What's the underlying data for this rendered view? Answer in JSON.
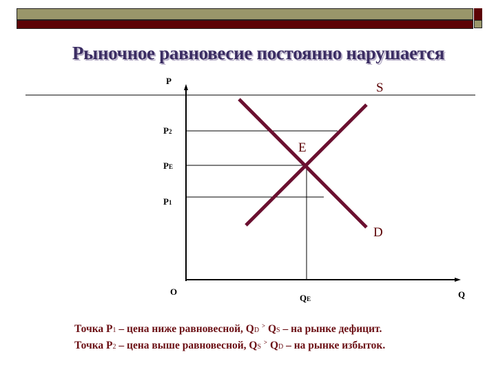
{
  "slide": {
    "title": "Рыночное равновесие постоянно нарушается",
    "colors": {
      "olive": "#99966a",
      "dark_red": "#5c0306",
      "title": "#3b2d63",
      "curve": "#6b1030"
    }
  },
  "diagram": {
    "axis_y_label": "P",
    "axis_x_label": "Q",
    "origin_label": "O",
    "price_labels": [
      {
        "main": "P",
        "sub": "2"
      },
      {
        "main": "P",
        "sub": "E"
      },
      {
        "main": "P",
        "sub": "1"
      }
    ],
    "qe_label": {
      "main": "Q",
      "sub": "E"
    },
    "supply_label": "S",
    "demand_label": "D",
    "equilibrium_label": "E"
  },
  "notes": [
    {
      "a": "Точка P",
      "a_sub": "1",
      "b": " – цена ниже равновесной,  Q",
      "b_sub": "D",
      "sym": "&gt;",
      "c": " Q",
      "c_sub": "S",
      "d": " – на рынке дефицит."
    },
    {
      "a": "Точка P",
      "a_sub": "2",
      "b": " – цена выше равновесной, Q",
      "b_sub": "S",
      "sym": "&gt;",
      "c": " Q",
      "c_sub": "D",
      "d": " – на рынке избыток."
    }
  ]
}
